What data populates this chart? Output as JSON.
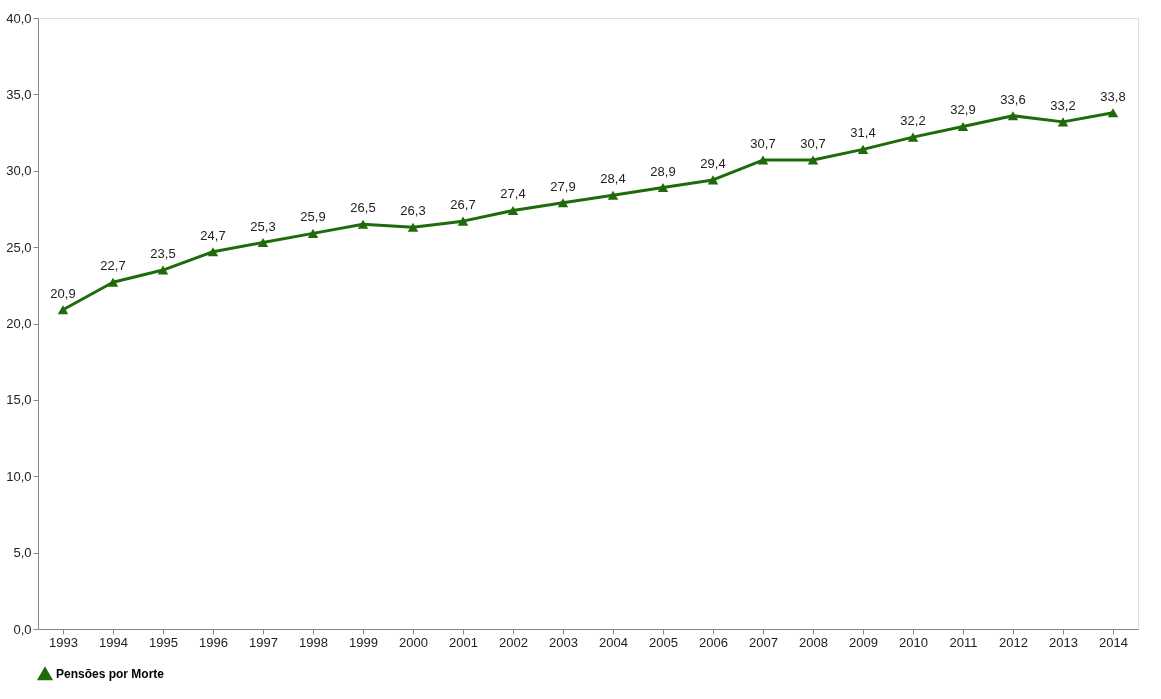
{
  "chart_data": {
    "type": "line",
    "categories": [
      "1993",
      "1994",
      "1995",
      "1996",
      "1997",
      "1998",
      "1999",
      "2000",
      "2001",
      "2002",
      "2003",
      "2004",
      "2005",
      "2006",
      "2007",
      "2008",
      "2009",
      "2010",
      "2011",
      "2012",
      "2013",
      "2014"
    ],
    "series": [
      {
        "name": "Pensões por Morte",
        "color": "#1f6b0c",
        "values": [
          20.9,
          22.7,
          23.5,
          24.7,
          25.3,
          25.9,
          26.5,
          26.3,
          26.7,
          27.4,
          27.9,
          28.4,
          28.9,
          29.4,
          30.7,
          30.7,
          31.4,
          32.2,
          32.9,
          33.6,
          33.2,
          33.8
        ],
        "value_labels": [
          "20,9",
          "22,7",
          "23,5",
          "24,7",
          "25,3",
          "25,9",
          "26,5",
          "26,3",
          "26,7",
          "27,4",
          "27,9",
          "28,4",
          "28,9",
          "29,4",
          "30,7",
          "30,7",
          "31,4",
          "32,2",
          "32,9",
          "33,6",
          "33,2",
          "33,8"
        ]
      }
    ],
    "ylim": [
      0,
      40
    ],
    "yticks": [
      {
        "value": 0,
        "label": "0,0"
      },
      {
        "value": 5,
        "label": "5,0"
      },
      {
        "value": 10,
        "label": "10,0"
      },
      {
        "value": 15,
        "label": "15,0"
      },
      {
        "value": 20,
        "label": "20,0"
      },
      {
        "value": 25,
        "label": "25,0"
      },
      {
        "value": 30,
        "label": "30,0"
      },
      {
        "value": 35,
        "label": "35,0"
      },
      {
        "value": 40,
        "label": "40,0"
      }
    ],
    "grid": false,
    "legend": "bottom",
    "marker": "triangle",
    "line_style": "solid"
  }
}
